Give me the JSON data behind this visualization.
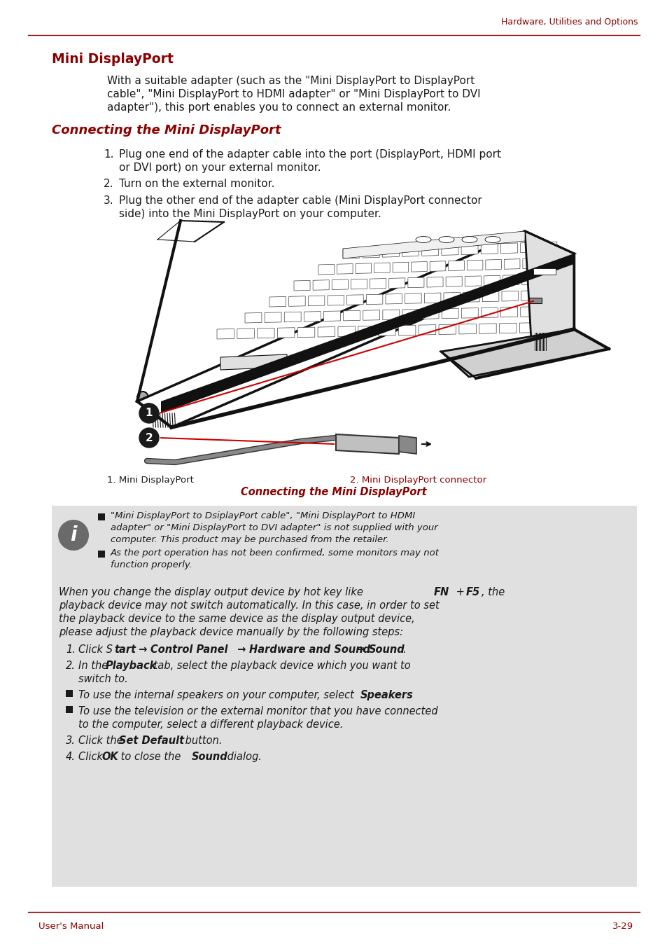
{
  "header_text": "Hardware, Utilities and Options",
  "header_color": "#8B0000",
  "section_title": "Mini DisplayPort",
  "section_title_color": "#8B0000",
  "section_title_fontsize": 13.5,
  "body_text_color": "#1a1a1a",
  "body_fontsize": 11.0,
  "intro_text_lines": [
    "With a suitable adapter (such as the \"Mini DisplayPort to DisplayPort",
    "cable\", \"Mini DisplayPort to HDMI adapter\" or \"Mini DisplayPort to DVI",
    "adapter\"), this port enables you to connect an external monitor."
  ],
  "subsection_title": "Connecting the Mini DisplayPort",
  "subsection_title_color": "#8B0000",
  "subsection_fontsize": 13.0,
  "step1_lines": [
    "Plug one end of the adapter cable into the port (DisplayPort, HDMI port",
    "or DVI port) on your external monitor."
  ],
  "step2_lines": [
    "Turn on the external monitor."
  ],
  "step3_lines": [
    "Plug the other end of the adapter cable (Mini DisplayPort connector",
    "side) into the Mini DisplayPort on your computer."
  ],
  "caption_left": "1. Mini DisplayPort",
  "caption_right": "2. Mini DisplayPort connector",
  "caption_right_color": "#8B0000",
  "caption_center": "Connecting the Mini DisplayPort",
  "caption_color": "#8B0000",
  "note_box_color": "#E0E0E0",
  "note_bullet1_lines": [
    "\"Mini DisplayPort to DsiplayPort cable\", \"Mini DisplayPort to HDMI",
    "adapter\" or \"Mini DisplayPort to DVI adapter\" is not supplied with your",
    "computer. This product may be purchased from the retailer."
  ],
  "note_bullet2_lines": [
    "As the port operation has not been confirmed, some monitors may not",
    "function properly."
  ],
  "italic_para_lines": [
    "When you change the display output device by hot key like FN + F5, the",
    "playback device may not switch automatically. In this case, in order to set",
    "the playback device to the same device as the display output device,",
    "please adjust the playback device manually by the following steps:"
  ],
  "footer_left": "User's Manual",
  "footer_right": "3-29",
  "footer_color": "#8B0000",
  "bg_color": "#FFFFFF",
  "line_color": "#8B0000"
}
